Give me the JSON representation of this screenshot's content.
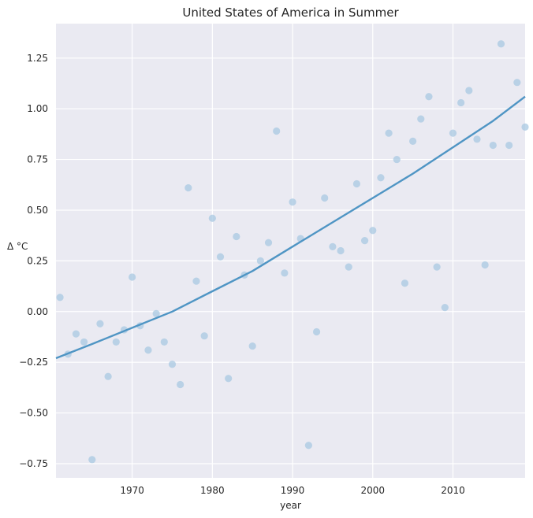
{
  "chart_data": {
    "type": "scatter",
    "title": "United States of America in Summer",
    "xlabel": "year",
    "ylabel": "Δ °C",
    "xlim": [
      1960.5,
      2019.0
    ],
    "ylim": [
      -0.82,
      1.42
    ],
    "grid": true,
    "x_ticks": [
      1970,
      1980,
      1990,
      2000,
      2010
    ],
    "y_ticks": [
      -0.75,
      -0.5,
      -0.25,
      0.0,
      0.25,
      0.5,
      0.75,
      1.0,
      1.25
    ],
    "y_tick_labels": [
      "−0.75",
      "−0.50",
      "−0.25",
      "0.00",
      "0.25",
      "0.50",
      "0.75",
      "1.00",
      "1.25"
    ],
    "colors": {
      "background": "#eaeaf2",
      "grid": "#ffffff",
      "points": "#a8c8e2",
      "trend": "#4f95c4"
    },
    "series": [
      {
        "kind": "points",
        "x": [
          1961,
          1962,
          1963,
          1964,
          1965,
          1966,
          1967,
          1968,
          1969,
          1970,
          1971,
          1972,
          1973,
          1974,
          1975,
          1976,
          1977,
          1978,
          1979,
          1980,
          1981,
          1982,
          1983,
          1984,
          1985,
          1986,
          1987,
          1988,
          1989,
          1990,
          1991,
          1992,
          1993,
          1994,
          1995,
          1996,
          1997,
          1998,
          1999,
          2000,
          2001,
          2002,
          2003,
          2004,
          2005,
          2006,
          2007,
          2008,
          2009,
          2010,
          2011,
          2012,
          2013,
          2014,
          2015,
          2016,
          2017,
          2018,
          2019
        ],
        "y": [
          0.07,
          -0.21,
          -0.11,
          -0.15,
          -0.73,
          -0.06,
          -0.32,
          -0.15,
          -0.09,
          0.17,
          -0.07,
          -0.19,
          -0.01,
          -0.15,
          -0.26,
          -0.36,
          0.61,
          0.15,
          -0.12,
          0.46,
          0.27,
          -0.33,
          0.37,
          0.18,
          -0.17,
          0.25,
          0.34,
          0.89,
          0.19,
          0.54,
          0.36,
          -0.66,
          -0.1,
          0.56,
          0.32,
          0.3,
          0.22,
          0.63,
          0.35,
          0.4,
          0.66,
          0.88,
          0.75,
          0.14,
          0.84,
          0.95,
          1.06,
          0.22,
          0.02,
          0.88,
          1.03,
          1.09,
          0.85,
          0.23,
          0.82,
          1.32,
          0.82,
          1.13,
          0.91
        ]
      },
      {
        "kind": "trend",
        "x": [
          1960.5,
          1965,
          1970,
          1975,
          1980,
          1985,
          1990,
          1995,
          2000,
          2005,
          2010,
          2015,
          2019
        ],
        "y": [
          -0.23,
          -0.16,
          -0.08,
          0.0,
          0.1,
          0.2,
          0.32,
          0.44,
          0.56,
          0.68,
          0.81,
          0.94,
          1.06
        ]
      }
    ]
  }
}
